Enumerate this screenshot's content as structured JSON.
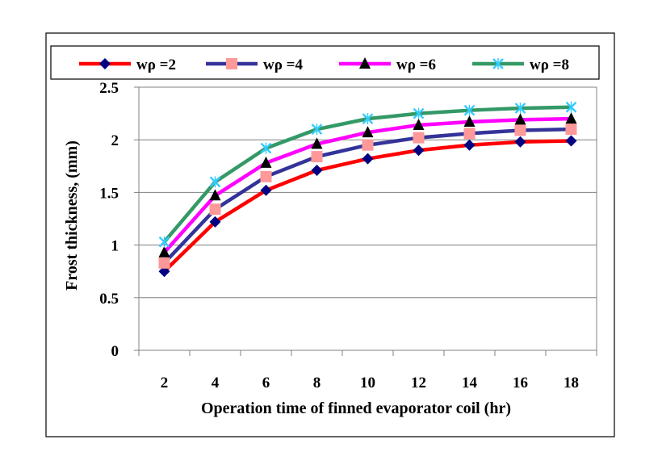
{
  "chart_data": {
    "type": "line",
    "title": "",
    "xlabel": "Operation time of finned evaporator coil (hr)",
    "ylabel": "Frost thickness, (mm)",
    "x": [
      2,
      4,
      6,
      8,
      10,
      12,
      14,
      16,
      18
    ],
    "xlim": [
      1,
      19
    ],
    "ylim": [
      0,
      2.5
    ],
    "y_ticks": [
      "0",
      "0.5",
      "1",
      "1.5",
      "2",
      "2.5"
    ],
    "x_ticks": [
      "2",
      "4",
      "6",
      "8",
      "10",
      "12",
      "14",
      "16",
      "18"
    ],
    "grid": "horizontal",
    "legend_placement": "top",
    "series": [
      {
        "name": "wρ =2",
        "color": "#ff0000",
        "marker_color": "#000080",
        "marker": "diamond",
        "values": [
          0.75,
          1.22,
          1.52,
          1.71,
          1.82,
          1.9,
          1.95,
          1.98,
          1.99
        ]
      },
      {
        "name": "wρ =4",
        "color": "#333399",
        "marker_color": "#ff9999",
        "marker": "square",
        "values": [
          0.83,
          1.34,
          1.65,
          1.84,
          1.95,
          2.02,
          2.06,
          2.09,
          2.1
        ]
      },
      {
        "name": "wρ =6",
        "color": "#ff00ff",
        "marker_color": "#000000",
        "marker": "triangle",
        "values": [
          0.93,
          1.47,
          1.78,
          1.96,
          2.07,
          2.14,
          2.17,
          2.19,
          2.2
        ]
      },
      {
        "name": "wρ =8",
        "color": "#339966",
        "marker_color": "#33ccff",
        "marker": "x",
        "values": [
          1.03,
          1.6,
          1.92,
          2.1,
          2.2,
          2.25,
          2.28,
          2.3,
          2.31
        ]
      }
    ]
  }
}
